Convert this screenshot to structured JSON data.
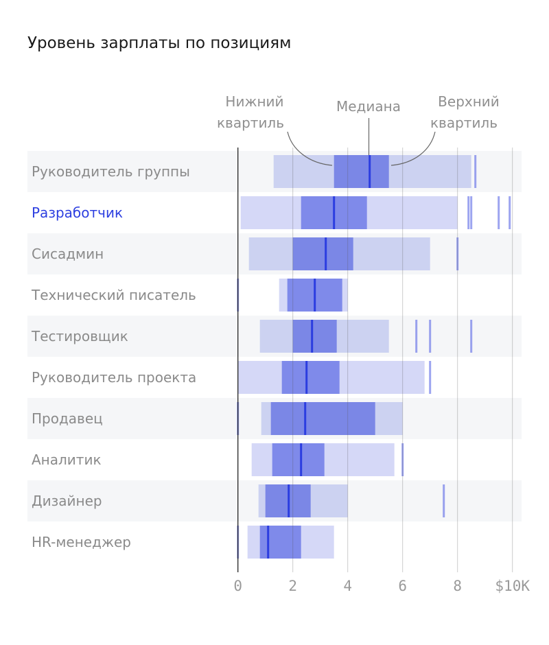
{
  "chart_data": {
    "type": "box",
    "title": "Уровень зарплаты по позициям",
    "orientation": "horizontal",
    "xlim": [
      0,
      10
    ],
    "xticks": [
      0,
      2,
      4,
      6,
      8,
      10
    ],
    "xtick_labels": [
      "0",
      "2",
      "4",
      "6",
      "8",
      "$10K"
    ],
    "grid": "vertical",
    "annotations": {
      "lower_quartile": "Нижний квартиль",
      "median": "Медиана",
      "upper_quartile": "Верхний квартиль"
    },
    "highlight_color": "#2d3fe0",
    "colors": {
      "range": "#d4d8f6",
      "iqr": "#7f8aea",
      "median": "#2b3de0",
      "highlight_label": "#2d3fe0"
    },
    "categories": [
      {
        "label": "Руководитель группы",
        "min": 1.3,
        "q1": 3.5,
        "median": 4.8,
        "q3": 5.5,
        "max": 8.5,
        "outliers": [
          8.65
        ],
        "highlight": false
      },
      {
        "label": "Разработчик",
        "min": 0.1,
        "q1": 2.3,
        "median": 3.5,
        "q3": 4.7,
        "max": 8.0,
        "outliers": [
          8.4,
          8.5,
          9.5,
          9.9
        ],
        "highlight": true
      },
      {
        "label": "Сисадмин",
        "min": 0.4,
        "q1": 2.0,
        "median": 3.2,
        "q3": 4.2,
        "max": 7.0,
        "outliers": [
          8.0
        ],
        "highlight": false
      },
      {
        "label": "Технический писатель",
        "min": 1.5,
        "q1": 1.8,
        "median": 2.8,
        "q3": 3.8,
        "max": 4.0,
        "outliers": [
          0
        ],
        "highlight": false
      },
      {
        "label": "Тестировщик",
        "min": 0.8,
        "q1": 2.0,
        "median": 2.7,
        "q3": 3.6,
        "max": 5.5,
        "outliers": [
          6.5,
          7.0,
          8.5
        ],
        "highlight": false
      },
      {
        "label": "Руководитель проекта",
        "min": 0.0,
        "q1": 1.6,
        "median": 2.5,
        "q3": 3.7,
        "max": 6.8,
        "outliers": [
          7.0
        ],
        "highlight": false
      },
      {
        "label": "Продавец",
        "min": 0.85,
        "q1": 1.2,
        "median": 2.45,
        "q3": 5.0,
        "max": 6.0,
        "outliers": [
          0
        ],
        "highlight": false
      },
      {
        "label": "Аналитик",
        "min": 0.5,
        "q1": 1.25,
        "median": 2.3,
        "q3": 3.15,
        "max": 5.7,
        "outliers": [
          6.0
        ],
        "highlight": false
      },
      {
        "label": "Дизайнер",
        "min": 0.75,
        "q1": 1.0,
        "median": 1.85,
        "q3": 2.65,
        "max": 4.0,
        "outliers": [
          7.5
        ],
        "highlight": false
      },
      {
        "label": "HR-менеджер",
        "min": 0.35,
        "q1": 0.8,
        "median": 1.1,
        "q3": 2.3,
        "max": 3.5,
        "outliers": [
          0
        ],
        "highlight": false
      }
    ]
  }
}
